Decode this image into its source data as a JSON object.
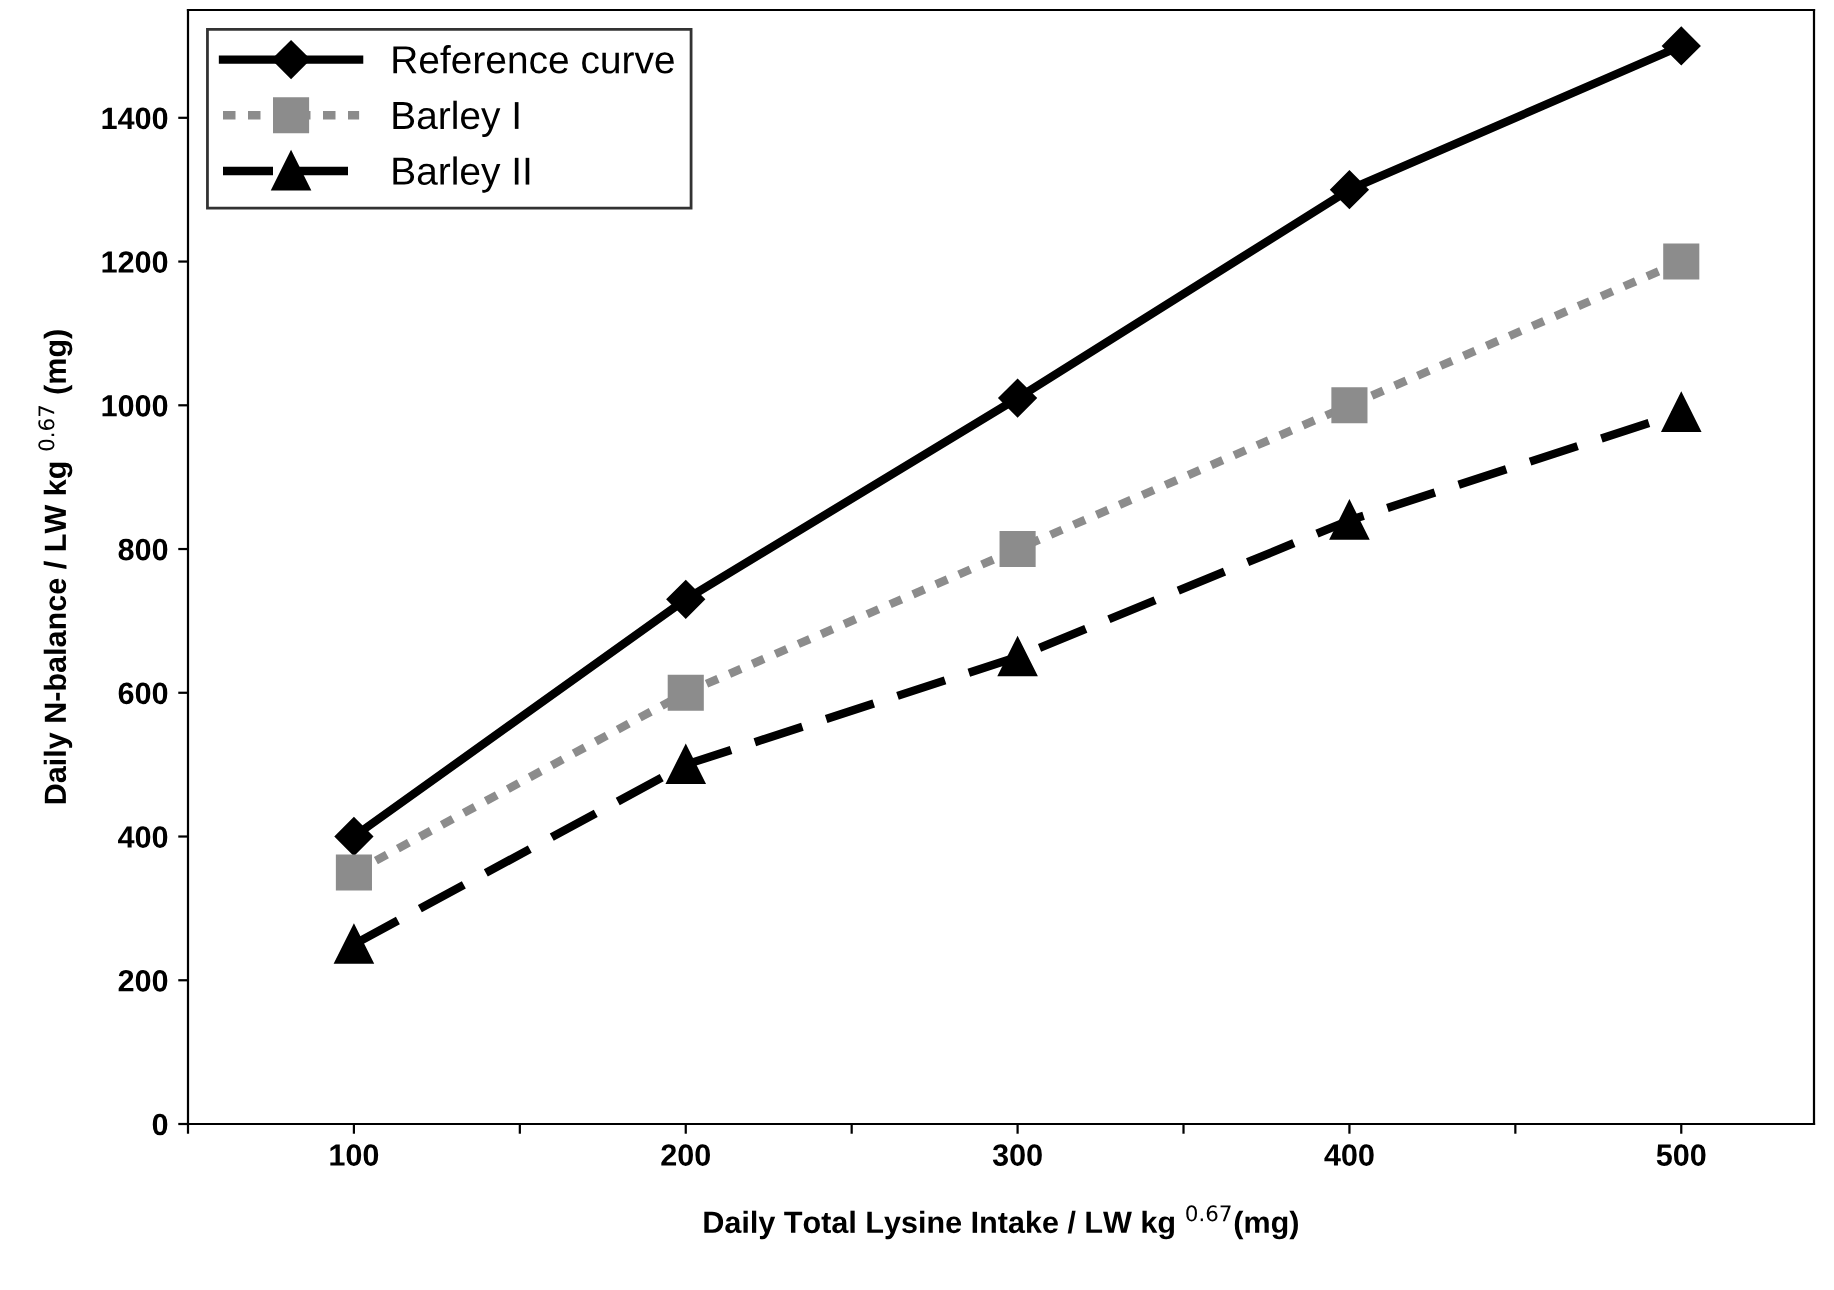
{
  "chart_data": {
    "type": "line",
    "xlabel": "Daily Total Lysine Intake / LW kg $^{0.67}$(mg)",
    "ylabel": "Daily N-balance / LW kg $^{0.67}$ (mg)",
    "x": [
      100,
      200,
      300,
      400,
      500
    ],
    "xlim": [
      50,
      540
    ],
    "xticks": [
      {
        "value": 50,
        "label": null
      },
      100,
      {
        "value": 150,
        "label": null
      },
      200,
      {
        "value": 250,
        "label": null
      },
      300,
      {
        "value": 350,
        "label": null
      },
      400,
      {
        "value": 450,
        "label": null
      },
      500
    ],
    "ylim": [
      0,
      1550
    ],
    "yticks": [
      0,
      200,
      400,
      600,
      800,
      1000,
      1200,
      1400
    ],
    "grid": false,
    "legend": "top left",
    "series": [
      {
        "name": "Reference curve",
        "color": "#000000",
        "marker": "diamond",
        "line_style": "solid",
        "values": [
          400,
          730,
          1010,
          1300,
          1500
        ]
      },
      {
        "name": "Barley I",
        "color": "#8c8c8c",
        "marker": "square",
        "line_style": "dotted",
        "values": [
          350,
          600,
          800,
          1000,
          1200
        ]
      },
      {
        "name": "Barley II",
        "color": "#000000",
        "marker": "triangle",
        "line_style": "dashed",
        "values": [
          250,
          500,
          650,
          840,
          990
        ]
      }
    ]
  }
}
